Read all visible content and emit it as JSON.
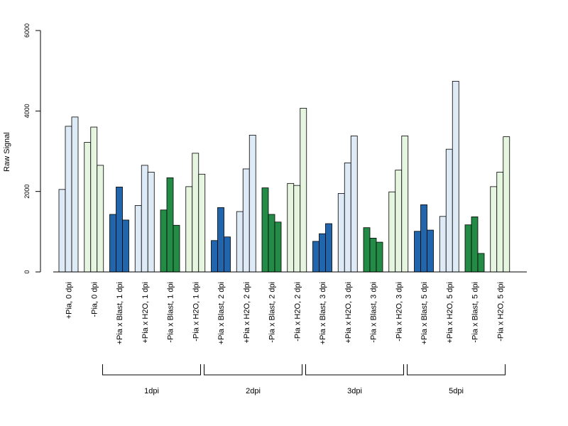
{
  "chart_data": {
    "type": "bar",
    "ylabel": "Raw Signal",
    "xlabel": "",
    "title": "",
    "ylim": [
      0,
      6000
    ],
    "yticks": [
      0,
      2000,
      4000,
      6000
    ],
    "grid": false,
    "categories": [
      "+Pia, 0 dpi",
      "-Pia, 0 dpi",
      "+Pia x Blast, 1 dpi",
      "+Pia x H2O, 1 dpi",
      "-Pia x Blast, 1 dpi",
      "-Pia x H2O, 1 dpi",
      "+Pia x Blast, 2 dpi",
      "+Pia x H2O, 2 dpi",
      "-Pia x Blast, 2 dpi",
      "-Pia x H2O, 2 dpi",
      "+Pia x Blast, 3 dpi",
      "+Pia x H2O, 3 dpi",
      "-Pia x Blast, 3 dpi",
      "-Pia x H2O, 3 dpi",
      "+Pia x Blast, 5 dpi",
      "+Pia x H2O, 5 dpi",
      "-Pia x Blast, 5 dpi",
      "-Pia x H2O, 5 dpi"
    ],
    "values": [
      [
        2050,
        3620,
        3850
      ],
      [
        3220,
        3600,
        2650
      ],
      [
        1430,
        2110,
        1290
      ],
      [
        1650,
        2650,
        2480
      ],
      [
        1540,
        2340,
        1160
      ],
      [
        2120,
        2950,
        2430
      ],
      [
        780,
        1600,
        870
      ],
      [
        1500,
        2560,
        3400
      ],
      [
        2090,
        1430,
        1240
      ],
      [
        2200,
        2150,
        4070
      ],
      [
        760,
        950,
        1200
      ],
      [
        1950,
        2710,
        3380
      ],
      [
        1100,
        840,
        740
      ],
      [
        1990,
        2530,
        3380
      ],
      [
        1010,
        1670,
        1040
      ],
      [
        1380,
        3050,
        4740
      ],
      [
        1170,
        1370,
        460
      ],
      [
        2120,
        2480,
        3360
      ]
    ],
    "category_colors": [
      "#deebf7",
      "#e5f5e0",
      "#2166ac",
      "#deebf7",
      "#238b45",
      "#e5f5e0",
      "#2166ac",
      "#deebf7",
      "#238b45",
      "#e5f5e0",
      "#2166ac",
      "#deebf7",
      "#238b45",
      "#e5f5e0",
      "#2166ac",
      "#deebf7",
      "#238b45",
      "#e5f5e0"
    ],
    "groups": [
      {
        "label": "1dpi",
        "from": 2,
        "to": 5
      },
      {
        "label": "2dpi",
        "from": 6,
        "to": 9
      },
      {
        "label": "3dpi",
        "from": 10,
        "to": 13
      },
      {
        "label": "5dpi",
        "from": 14,
        "to": 17
      }
    ]
  }
}
